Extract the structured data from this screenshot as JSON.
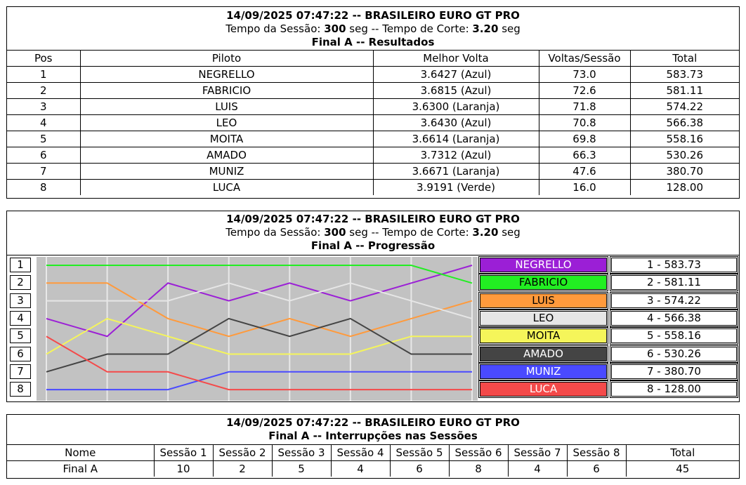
{
  "header": {
    "datetime_title": "14/09/2025 07:47:22 -- BRASILEIRO EURO GT PRO",
    "session_prefix": "Tempo da Sessão: ",
    "session_time": "300",
    "session_mid": " seg -- Tempo de Corte: ",
    "cut_time": "3.20",
    "session_suffix": " seg"
  },
  "results": {
    "subtitle": "Final A -- Resultados",
    "columns": [
      "Pos",
      "Piloto",
      "Melhor Volta",
      "Voltas/Sessão",
      "Total"
    ],
    "rows": [
      {
        "pos": "1",
        "pilot": "NEGRELLO",
        "best": "3.6427 (Azul)",
        "laps": "73.0",
        "total": "583.73"
      },
      {
        "pos": "2",
        "pilot": "FABRICIO",
        "best": "3.6815 (Azul)",
        "laps": "72.6",
        "total": "581.11"
      },
      {
        "pos": "3",
        "pilot": "LUIS",
        "best": "3.6300 (Laranja)",
        "laps": "71.8",
        "total": "574.22"
      },
      {
        "pos": "4",
        "pilot": "LEO",
        "best": "3.6430 (Azul)",
        "laps": "70.8",
        "total": "566.38"
      },
      {
        "pos": "5",
        "pilot": "MOITA",
        "best": "3.6614 (Laranja)",
        "laps": "69.8",
        "total": "558.16"
      },
      {
        "pos": "6",
        "pilot": "AMADO",
        "best": "3.7312 (Azul)",
        "laps": "66.3",
        "total": "530.26"
      },
      {
        "pos": "7",
        "pilot": "MUNIZ",
        "best": "3.6671 (Laranja)",
        "laps": "47.6",
        "total": "380.70"
      },
      {
        "pos": "8",
        "pilot": "LUCA",
        "best": "3.9191 (Verde)",
        "laps": "16.0",
        "total": "128.00"
      }
    ]
  },
  "progression": {
    "subtitle": "Final A -- Progressão",
    "positions": [
      "1",
      "2",
      "3",
      "4",
      "5",
      "6",
      "7",
      "8"
    ],
    "legend": [
      {
        "name": "NEGRELLO",
        "color": "#9b1fd6",
        "text_color": "#ffffff",
        "score": "1 - 583.73"
      },
      {
        "name": "FABRICIO",
        "color": "#22ee22",
        "text_color": "#000000",
        "score": "2 - 581.11"
      },
      {
        "name": "LUIS",
        "color": "#ff9a3c",
        "text_color": "#000000",
        "score": "3 - 574.22"
      },
      {
        "name": "LEO",
        "color": "#e6e6e6",
        "text_color": "#000000",
        "score": "4 - 566.38"
      },
      {
        "name": "MOITA",
        "color": "#f5f55a",
        "text_color": "#000000",
        "score": "5 - 558.16"
      },
      {
        "name": "AMADO",
        "color": "#444444",
        "text_color": "#ffffff",
        "score": "6 - 530.26"
      },
      {
        "name": "MUNIZ",
        "color": "#4a4aff",
        "text_color": "#ffffff",
        "score": "7 - 380.70"
      },
      {
        "name": "LUCA",
        "color": "#f44a4a",
        "text_color": "#ffffff",
        "score": "8 - 128.00"
      }
    ]
  },
  "chart_data": {
    "type": "line",
    "x": [
      0,
      1,
      2,
      3,
      4,
      5,
      6,
      7
    ],
    "ylim": [
      1,
      8
    ],
    "grid": true,
    "series": [
      {
        "name": "NEGRELLO",
        "color": "#9b1fd6",
        "values": [
          4,
          5,
          2,
          3,
          2,
          3,
          2,
          1
        ]
      },
      {
        "name": "FABRICIO",
        "color": "#22ee22",
        "values": [
          1,
          1,
          1,
          1,
          1,
          1,
          1,
          2
        ]
      },
      {
        "name": "LUIS",
        "color": "#ff9a3c",
        "values": [
          2,
          2,
          4,
          5,
          4,
          5,
          4,
          3
        ]
      },
      {
        "name": "LEO",
        "color": "#e6e6e6",
        "values": [
          3,
          3,
          3,
          2,
          3,
          2,
          3,
          4
        ]
      },
      {
        "name": "MOITA",
        "color": "#f5f55a",
        "values": [
          6,
          4,
          5,
          6,
          6,
          6,
          5,
          5
        ]
      },
      {
        "name": "AMADO",
        "color": "#444444",
        "values": [
          7,
          6,
          6,
          4,
          5,
          4,
          6,
          6
        ]
      },
      {
        "name": "MUNIZ",
        "color": "#4a4aff",
        "values": [
          8,
          8,
          8,
          7,
          7,
          7,
          7,
          7
        ]
      },
      {
        "name": "LUCA",
        "color": "#f44a4a",
        "values": [
          5,
          7,
          7,
          8,
          8,
          8,
          8,
          8
        ]
      }
    ]
  },
  "interruptions": {
    "subtitle": "Final A -- Interrupções nas Sessões",
    "columns": [
      "Nome",
      "Sessão 1",
      "Sessão 2",
      "Sessão 3",
      "Sessão 4",
      "Sessão 5",
      "Sessão 6",
      "Sessão 7",
      "Sessão 8",
      "Total"
    ],
    "row": {
      "name": "Final A",
      "values": [
        "10",
        "2",
        "5",
        "4",
        "6",
        "8",
        "4",
        "6"
      ],
      "total": "45"
    }
  }
}
